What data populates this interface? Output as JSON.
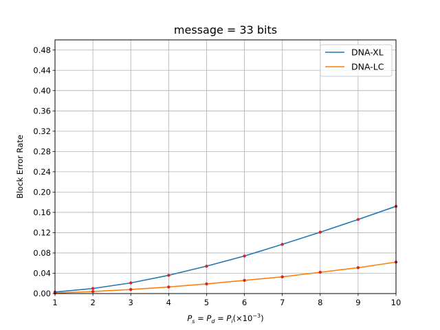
{
  "chart_data": {
    "type": "line",
    "title": "message = 33 bits",
    "xlabel_parts": {
      "ps": "P",
      "ps_sub": "s",
      "eq1": " = ",
      "pd": "P",
      "pd_sub": "d",
      "eq2": " = ",
      "pi": "P",
      "pi_sub": "i",
      "rest": "(×10",
      "exp": "−3",
      "close": ")"
    },
    "ylabel": "Block Error Rate",
    "xlim": [
      1,
      10
    ],
    "ylim": [
      0,
      0.5
    ],
    "x_ticks": [
      1,
      2,
      3,
      4,
      5,
      6,
      7,
      8,
      9,
      10
    ],
    "y_ticks": [
      "0.00",
      "0.04",
      "0.08",
      "0.12",
      "0.16",
      "0.20",
      "0.24",
      "0.28",
      "0.32",
      "0.36",
      "0.40",
      "0.44",
      "0.48"
    ],
    "grid": true,
    "legend_placement": "top-right",
    "x": [
      1,
      2,
      3,
      4,
      5,
      6,
      7,
      8,
      9,
      10
    ],
    "series": [
      {
        "name": "DNA-XL",
        "color": "#1f77b4",
        "values": [
          0.003,
          0.01,
          0.021,
          0.036,
          0.054,
          0.074,
          0.097,
          0.121,
          0.146,
          0.172
        ]
      },
      {
        "name": "DNA-LC",
        "color": "#ff7f0e",
        "values": [
          0.001,
          0.004,
          0.008,
          0.013,
          0.019,
          0.026,
          0.033,
          0.042,
          0.051,
          0.062
        ]
      }
    ],
    "marker_color": "#d62728"
  }
}
